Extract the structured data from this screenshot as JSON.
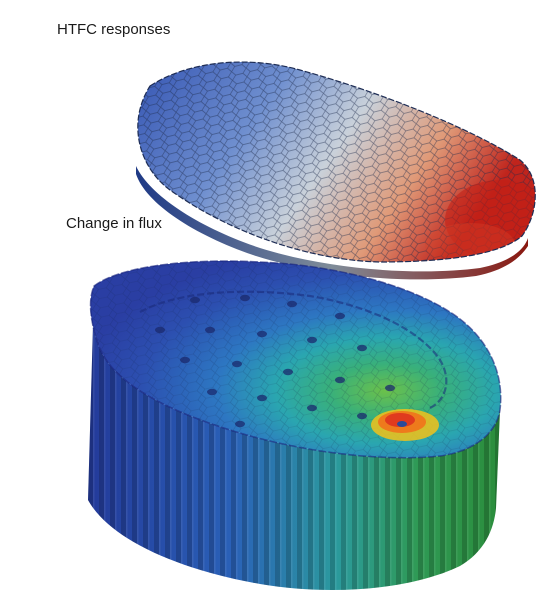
{
  "labels": {
    "top": "HTFC responses",
    "bottom": "Change in flux"
  },
  "colors": {
    "top_cool": "#3a5fb8",
    "top_mid": "#c7cfd8",
    "top_hot": "#c0241c",
    "core_low": "#2b3fa5",
    "core_mid": "#2fb3a8",
    "core_high": "#3fae3a",
    "hotspot": "#e03a1e",
    "hotspot_ring": "#f2c21a"
  }
}
